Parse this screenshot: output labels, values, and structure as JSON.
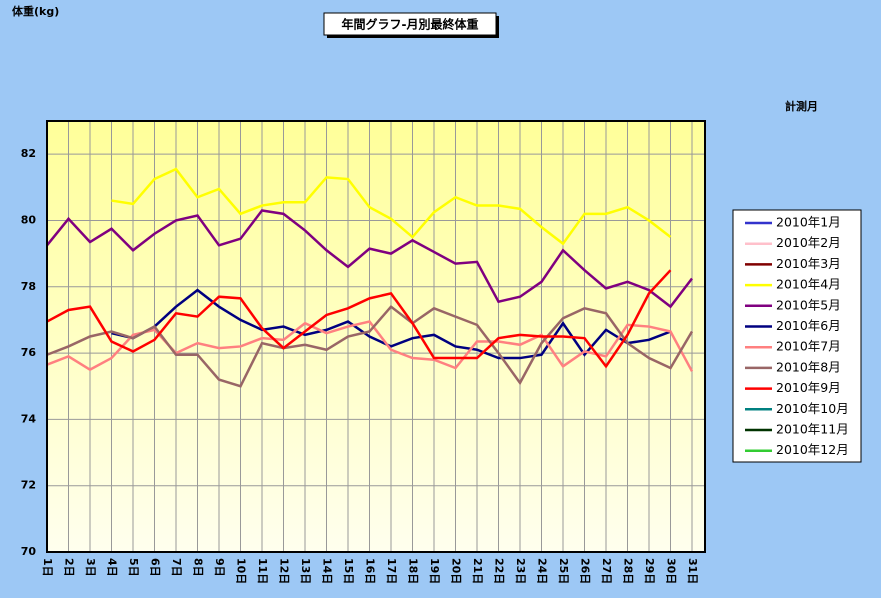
{
  "chart_data": {
    "type": "line",
    "title": "年間グラフ-月別最終体重",
    "y_label": "体重(kg)",
    "legend_title": "計測月",
    "legend": "right",
    "grid": true,
    "ylim": [
      70,
      83
    ],
    "yticks": [
      70,
      72,
      74,
      76,
      78,
      80,
      82
    ],
    "categories": [
      "1日",
      "2日",
      "3日",
      "4日",
      "5日",
      "6日",
      "7日",
      "8日",
      "9日",
      "10日",
      "11日",
      "12日",
      "13日",
      "14日",
      "15日",
      "16日",
      "17日",
      "18日",
      "19日",
      "20日",
      "21日",
      "22日",
      "23日",
      "24日",
      "25日",
      "26日",
      "27日",
      "28日",
      "29日",
      "30日",
      "31日"
    ],
    "series": [
      {
        "name": "2010年1月",
        "color": "#3333cc",
        "values": [
          null,
          null,
          null,
          null,
          null,
          null,
          null,
          null,
          null,
          null,
          null,
          null,
          null,
          null,
          null,
          null,
          null,
          null,
          null,
          null,
          null,
          null,
          null,
          null,
          null,
          null,
          null,
          null,
          null,
          null,
          null
        ]
      },
      {
        "name": "2010年2月",
        "color": "#ffc0cb",
        "values": [
          null,
          null,
          null,
          null,
          null,
          null,
          null,
          null,
          null,
          null,
          null,
          null,
          null,
          null,
          null,
          null,
          null,
          null,
          null,
          null,
          null,
          null,
          null,
          null,
          null,
          null,
          null,
          null,
          null,
          null,
          null
        ]
      },
      {
        "name": "2010年3月",
        "color": "#800000",
        "values": [
          null,
          null,
          null,
          null,
          null,
          null,
          null,
          null,
          null,
          null,
          null,
          null,
          null,
          null,
          null,
          null,
          null,
          null,
          null,
          null,
          null,
          null,
          null,
          null,
          null,
          null,
          null,
          null,
          null,
          null,
          null
        ]
      },
      {
        "name": "2010年4月",
        "color": "#ffff00",
        "values": [
          null,
          null,
          null,
          80.6,
          80.5,
          81.25,
          81.55,
          80.7,
          80.95,
          80.2,
          80.45,
          80.55,
          80.55,
          81.3,
          81.25,
          80.4,
          80.05,
          79.5,
          80.25,
          80.7,
          80.45,
          80.45,
          80.35,
          79.8,
          79.3,
          80.2,
          80.2,
          80.4,
          80.0,
          79.5,
          null
        ]
      },
      {
        "name": "2010年5月",
        "color": "#800080",
        "values": [
          79.25,
          80.05,
          79.35,
          79.75,
          79.1,
          79.6,
          80.0,
          80.15,
          79.25,
          79.45,
          80.3,
          80.2,
          79.7,
          79.1,
          78.6,
          79.15,
          79.0,
          79.4,
          79.05,
          78.7,
          78.75,
          77.55,
          77.7,
          78.15,
          79.1,
          78.5,
          77.95,
          78.15,
          77.9,
          77.4,
          78.25
        ]
      },
      {
        "name": "2010年6月",
        "color": "#000080",
        "values": [
          null,
          null,
          null,
          76.6,
          76.45,
          76.8,
          77.4,
          77.9,
          77.4,
          77.0,
          76.7,
          76.8,
          76.55,
          76.7,
          76.95,
          76.5,
          76.2,
          76.45,
          76.55,
          76.2,
          76.1,
          75.85,
          75.85,
          75.95,
          76.9,
          75.95,
          76.7,
          76.3,
          76.4,
          76.65,
          null
        ]
      },
      {
        "name": "2010年7月",
        "color": "#ff8080",
        "values": [
          75.65,
          75.9,
          75.5,
          75.85,
          76.55,
          76.7,
          76.0,
          76.3,
          76.15,
          76.2,
          76.45,
          76.4,
          76.9,
          76.6,
          76.8,
          76.95,
          76.1,
          75.85,
          75.8,
          75.55,
          76.35,
          76.35,
          76.25,
          76.55,
          75.6,
          76.05,
          75.9,
          76.85,
          76.8,
          76.65,
          75.45
        ]
      },
      {
        "name": "2010年8月",
        "color": "#996666",
        "values": [
          75.95,
          76.2,
          76.5,
          76.65,
          76.45,
          76.8,
          75.95,
          75.95,
          75.2,
          75.0,
          76.3,
          76.15,
          76.25,
          76.1,
          76.5,
          76.65,
          77.4,
          76.9,
          77.35,
          77.1,
          76.85,
          76.0,
          75.1,
          76.3,
          77.05,
          77.35,
          77.2,
          76.3,
          75.85,
          75.55,
          76.65
        ]
      },
      {
        "name": "2010年9月",
        "color": "#ff0000",
        "values": [
          76.95,
          77.3,
          77.4,
          76.35,
          76.05,
          76.4,
          77.2,
          77.1,
          77.7,
          77.65,
          76.75,
          76.15,
          76.65,
          77.15,
          77.35,
          77.65,
          77.8,
          76.9,
          75.85,
          75.85,
          75.85,
          76.45,
          76.55,
          76.5,
          76.5,
          76.45,
          75.6,
          76.55,
          77.8,
          78.5,
          null
        ]
      },
      {
        "name": "2010年10月",
        "color": "#008080",
        "values": [
          null,
          null,
          null,
          null,
          null,
          null,
          null,
          null,
          null,
          null,
          null,
          null,
          null,
          null,
          null,
          null,
          null,
          null,
          null,
          null,
          null,
          null,
          null,
          null,
          null,
          null,
          null,
          null,
          null,
          null,
          null
        ]
      },
      {
        "name": "2010年11月",
        "color": "#003300",
        "values": [
          null,
          null,
          null,
          null,
          null,
          null,
          null,
          null,
          null,
          null,
          null,
          null,
          null,
          null,
          null,
          null,
          null,
          null,
          null,
          null,
          null,
          null,
          null,
          null,
          null,
          null,
          null,
          null,
          null,
          null,
          null
        ]
      },
      {
        "name": "2010年12月",
        "color": "#33cc33",
        "values": [
          null,
          null,
          null,
          null,
          null,
          null,
          null,
          null,
          null,
          null,
          null,
          null,
          null,
          null,
          null,
          null,
          null,
          null,
          null,
          null,
          null,
          null,
          null,
          null,
          null,
          null,
          null,
          null,
          null,
          null,
          null
        ]
      }
    ]
  }
}
